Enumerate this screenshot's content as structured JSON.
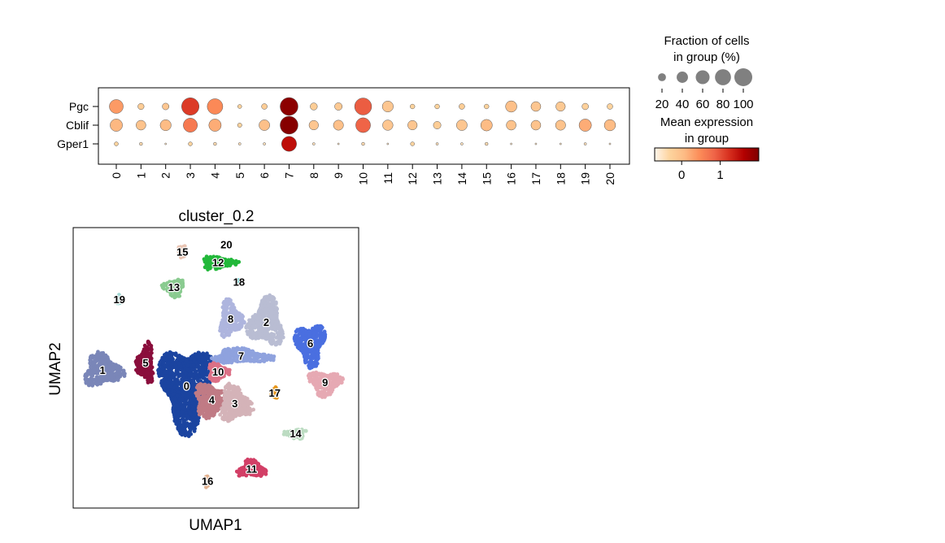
{
  "colors": {
    "cmap": [
      "#fff5eb",
      "#fee6ce",
      "#fdd0a2",
      "#fdae6b",
      "#fd8d3c",
      "#f16913",
      "#d94801",
      "#a63603",
      "#7f2704"
    ],
    "cmap_reds": [
      "#fff5eb",
      "#fdd49e",
      "#fdbb84",
      "#fc8d59",
      "#ef6548",
      "#d7301f",
      "#b30000",
      "#7f0000"
    ],
    "size_legend_fill": "#808080"
  },
  "chart_data": [
    {
      "type": "dotplot",
      "genes": [
        "Pgc",
        "Cblif",
        "Gper1"
      ],
      "groups": [
        "0",
        "1",
        "2",
        "3",
        "4",
        "5",
        "6",
        "7",
        "8",
        "9",
        "10",
        "11",
        "12",
        "13",
        "14",
        "15",
        "16",
        "17",
        "18",
        "19",
        "20"
      ],
      "fraction": [
        [
          60,
          12,
          14,
          95,
          75,
          5,
          10,
          100,
          16,
          18,
          90,
          38,
          7,
          7,
          10,
          7,
          40,
          30,
          28,
          13,
          10
        ],
        [
          48,
          30,
          38,
          62,
          48,
          6,
          36,
          100,
          28,
          32,
          68,
          34,
          28,
          18,
          36,
          42,
          30,
          30,
          32,
          48,
          40
        ],
        [
          5,
          3,
          1,
          5,
          3,
          2,
          2,
          70,
          2,
          1,
          3,
          1,
          5,
          2,
          2,
          3,
          1,
          1,
          1,
          2,
          1
        ]
      ],
      "expression": [
        [
          0.35,
          -0.2,
          -0.1,
          1.15,
          0.5,
          -0.3,
          -0.2,
          1.9,
          -0.2,
          -0.15,
          0.9,
          -0.1,
          -0.3,
          -0.3,
          -0.2,
          -0.3,
          0.0,
          -0.1,
          -0.15,
          -0.25,
          -0.3
        ],
        [
          0.1,
          -0.05,
          0.05,
          0.65,
          0.2,
          -0.3,
          0.0,
          1.95,
          -0.1,
          0.0,
          0.85,
          -0.1,
          -0.1,
          -0.2,
          -0.1,
          0.05,
          -0.05,
          -0.05,
          -0.05,
          0.2,
          0.05
        ],
        [
          -0.3,
          -0.4,
          -0.5,
          -0.3,
          -0.4,
          -0.45,
          -0.45,
          1.5,
          -0.45,
          -0.5,
          -0.4,
          -0.5,
          -0.3,
          -0.45,
          -0.45,
          -0.4,
          -0.5,
          -0.5,
          -0.5,
          -0.45,
          -0.5
        ]
      ],
      "size_legend": {
        "title_line1": "Fraction of cells",
        "title_line2": "in group (%)",
        "values": [
          20,
          40,
          60,
          80,
          100
        ],
        "labels": [
          "20",
          "40",
          "60",
          "80",
          "100"
        ]
      },
      "color_legend": {
        "title_line1": "Mean expression",
        "title_line2": "in group",
        "range": [
          -0.7,
          2.0
        ],
        "ticks": [
          0,
          1
        ],
        "tick_labels": [
          "0",
          "1"
        ]
      }
    },
    {
      "type": "scatter",
      "title": "cluster_0.2",
      "xlabel": "UMAP1",
      "ylabel": "UMAP2",
      "clusters": [
        {
          "id": "0",
          "label": "0",
          "color": "#1b44a0",
          "cx": 0.0,
          "cy": -0.6,
          "rx": 1.35,
          "ry": 2.6
        },
        {
          "id": "1",
          "label": "1",
          "color": "#7a86b8",
          "cx": -4.0,
          "cy": 0.3,
          "rx": 1.0,
          "ry": 1.0
        },
        {
          "id": "2",
          "label": "2",
          "color": "#b9bdd3",
          "cx": 3.8,
          "cy": 3.0,
          "rx": 0.9,
          "ry": 1.45
        },
        {
          "id": "3",
          "label": "3",
          "color": "#d4b3b8",
          "cx": 2.3,
          "cy": -1.6,
          "rx": 0.85,
          "ry": 1.1
        },
        {
          "id": "4",
          "label": "4",
          "color": "#c07b85",
          "cx": 1.2,
          "cy": -1.4,
          "rx": 0.95,
          "ry": 1.0
        },
        {
          "id": "5",
          "label": "5",
          "color": "#8a0e3c",
          "cx": -1.95,
          "cy": 0.7,
          "rx": 0.45,
          "ry": 1.2
        },
        {
          "id": "6",
          "label": "6",
          "color": "#4a6fe0",
          "cx": 5.9,
          "cy": 1.8,
          "rx": 0.75,
          "ry": 1.3
        },
        {
          "id": "7",
          "label": "7",
          "color": "#8fa2de",
          "cx": 2.6,
          "cy": 1.1,
          "rx": 1.6,
          "ry": 0.45
        },
        {
          "id": "8",
          "label": "8",
          "color": "#aeb5de",
          "cx": 2.1,
          "cy": 3.2,
          "rx": 0.6,
          "ry": 1.1
        },
        {
          "id": "9",
          "label": "9",
          "color": "#e6a9b3",
          "cx": 6.6,
          "cy": -0.4,
          "rx": 0.85,
          "ry": 0.75
        },
        {
          "id": "10",
          "label": "10",
          "color": "#dc7086",
          "cx": 1.5,
          "cy": 0.2,
          "rx": 0.55,
          "ry": 0.55
        },
        {
          "id": "11",
          "label": "11",
          "color": "#d23f66",
          "cx": 3.1,
          "cy": -5.3,
          "rx": 0.75,
          "ry": 0.55
        },
        {
          "id": "12",
          "label": "12",
          "color": "#22b83a",
          "cx": 1.5,
          "cy": 6.4,
          "rx": 0.95,
          "ry": 0.4
        },
        {
          "id": "13",
          "label": "13",
          "color": "#8acb90",
          "cx": -0.6,
          "cy": 5.0,
          "rx": 0.55,
          "ry": 0.55
        },
        {
          "id": "14",
          "label": "14",
          "color": "#bcdcc2",
          "cx": 5.2,
          "cy": -3.3,
          "rx": 0.6,
          "ry": 0.3
        },
        {
          "id": "15",
          "label": "15",
          "color": "#e8c4b3",
          "cx": -0.2,
          "cy": 7.0,
          "rx": 0.2,
          "ry": 0.45
        },
        {
          "id": "16",
          "label": "16",
          "color": "#e3b290",
          "cx": 1.0,
          "cy": -6.0,
          "rx": 0.15,
          "ry": 0.4
        },
        {
          "id": "17",
          "label": "17",
          "color": "#e7961b",
          "cx": 4.2,
          "cy": -1.0,
          "rx": 0.15,
          "ry": 0.35
        },
        {
          "id": "18",
          "label": "18",
          "color": "#2ac1c0",
          "cx": 2.5,
          "cy": 5.3,
          "rx": 0.12,
          "ry": 0.15
        },
        {
          "id": "19",
          "label": "19",
          "color": "#9fd6d2",
          "cx": -3.2,
          "cy": 4.3,
          "rx": 0.13,
          "ry": 0.3
        },
        {
          "id": "20",
          "label": "20",
          "color": "#c9e6dc",
          "cx": 1.9,
          "cy": 7.4,
          "rx": 0.1,
          "ry": 0.08
        }
      ],
      "xlim": [
        -5.4,
        8.2
      ],
      "ylim": [
        -7.5,
        8.4
      ]
    }
  ]
}
